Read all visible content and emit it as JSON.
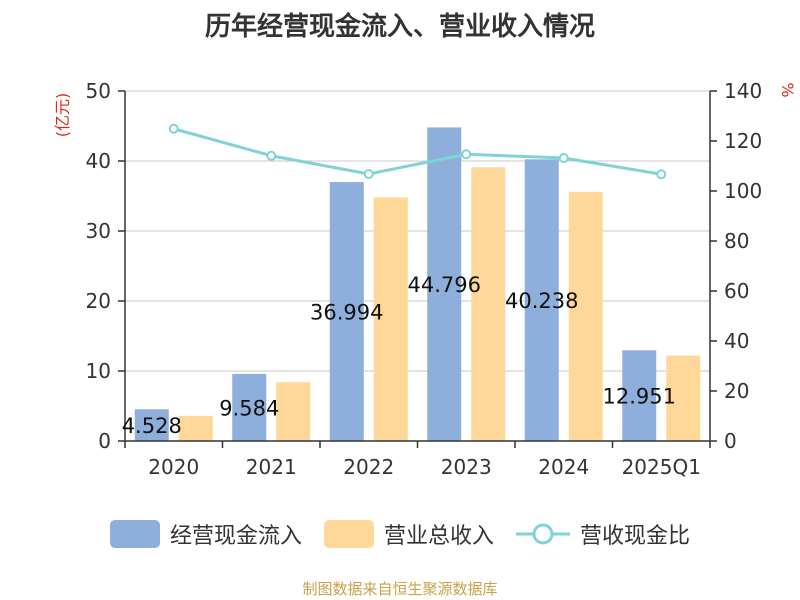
{
  "chart_data": {
    "type": "bar",
    "title": "历年经营现金流入、营业收入情况",
    "categories": [
      "2020",
      "2021",
      "2022",
      "2023",
      "2024",
      "2025Q1"
    ],
    "series": [
      {
        "name": "经营现金流入",
        "type": "bar",
        "axis": "left",
        "values": [
          4.528,
          9.584,
          36.994,
          44.796,
          40.238,
          12.951
        ],
        "labels": [
          "4.528",
          "9.584",
          "36.994",
          "44.796",
          "40.238",
          "12.951"
        ]
      },
      {
        "name": "营业总收入",
        "type": "bar",
        "axis": "left",
        "values": [
          3.6,
          8.4,
          34.8,
          39.1,
          35.6,
          12.2
        ]
      },
      {
        "name": "营收现金比",
        "type": "line",
        "axis": "right",
        "values": [
          124.9,
          114.1,
          106.8,
          114.7,
          113.2,
          106.7
        ]
      }
    ],
    "y_left": {
      "label": "(亿元)",
      "range": [
        0,
        50
      ],
      "ticks": [
        "0",
        "10",
        "20",
        "30",
        "40",
        "50"
      ]
    },
    "y_right": {
      "label": "%",
      "range": [
        0,
        140
      ],
      "ticks": [
        "0",
        "20",
        "40",
        "60",
        "80",
        "100",
        "120",
        "140"
      ]
    },
    "grid": true,
    "legend_position": "bottom"
  },
  "colors": {
    "bar1": "#8eaedb",
    "bar2": "#ffd899",
    "line": "#7fd3d6",
    "axis_label": "#e0261f",
    "source": "#c9a14a"
  },
  "source_text": "制图数据来自恒生聚源数据库"
}
